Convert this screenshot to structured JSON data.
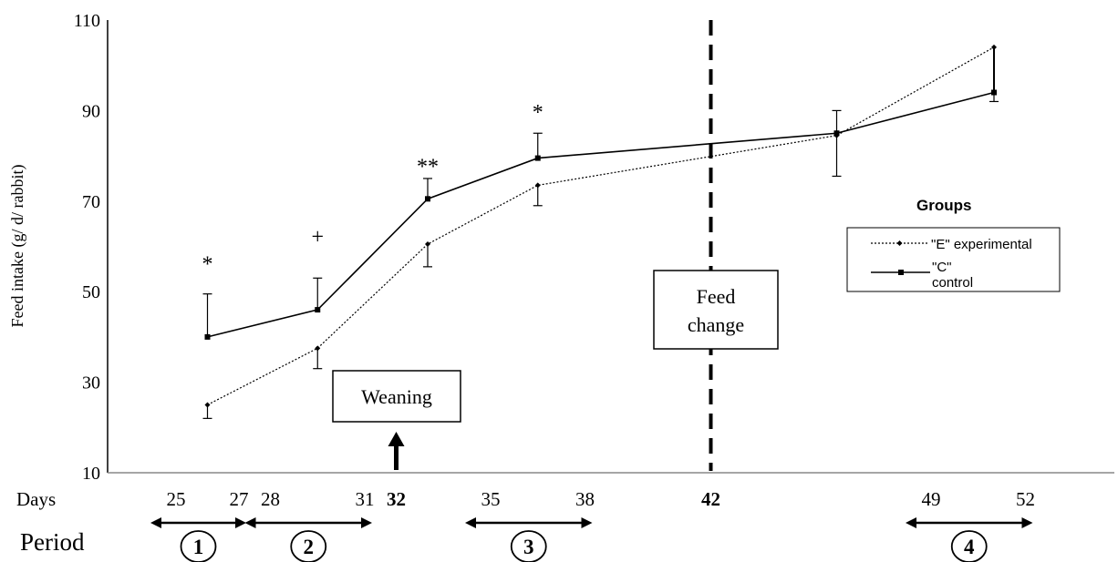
{
  "chart_data": {
    "type": "line",
    "ylabel": "Feed intake (g/ d/ rabbit)",
    "ylim": [
      10,
      110
    ],
    "yticks": [
      "10",
      "30",
      "50",
      "70",
      "90",
      "110"
    ],
    "x_axis_label": "Days",
    "x_day_labels": [
      {
        "day": 25,
        "label": "25",
        "bold": false
      },
      {
        "day": 27,
        "label": "27",
        "bold": false
      },
      {
        "day": 28,
        "label": "28",
        "bold": false
      },
      {
        "day": 31,
        "label": "31",
        "bold": false
      },
      {
        "day": 32,
        "label": "32",
        "bold": true
      },
      {
        "day": 35,
        "label": "35",
        "bold": false
      },
      {
        "day": 38,
        "label": "38",
        "bold": false
      },
      {
        "day": 42,
        "label": "42",
        "bold": true
      },
      {
        "day": 49,
        "label": "49",
        "bold": false
      },
      {
        "day": 52,
        "label": "52",
        "bold": false
      }
    ],
    "legend_title": "Groups",
    "series": [
      {
        "name": "\"E\" experimental",
        "style": "dotted",
        "marker": "diamond",
        "points": [
          {
            "day": 26,
            "value": 25,
            "err_low": 22
          },
          {
            "day": 29.5,
            "value": 37.5,
            "err_low": 33
          },
          {
            "day": 33,
            "value": 60.5,
            "err_low": 55.5
          },
          {
            "day": 36.5,
            "value": 73.5,
            "err_low": 69
          },
          {
            "day": 46,
            "value": 84.5,
            "err_low": 75.5
          },
          {
            "day": 51,
            "value": 104
          }
        ]
      },
      {
        "name": "\"C\" control",
        "name_line1": "\"C\"",
        "name_line2": "control",
        "style": "solid",
        "marker": "square",
        "points": [
          {
            "day": 26,
            "value": 40,
            "err_high": 49.5
          },
          {
            "day": 29.5,
            "value": 46,
            "err_high": 53
          },
          {
            "day": 33,
            "value": 70.5,
            "err_high": 75
          },
          {
            "day": 36.5,
            "value": 79.5,
            "err_high": 85
          },
          {
            "day": 46,
            "value": 85,
            "err_high": 90
          },
          {
            "day": 51,
            "value": 94,
            "err_low": 92
          }
        ]
      }
    ],
    "significance": [
      {
        "day": 26,
        "value": 57,
        "label": "*"
      },
      {
        "day": 29.5,
        "value": 63,
        "label": "+"
      },
      {
        "day": 33,
        "value": 78.5,
        "label": "**"
      },
      {
        "day": 36.5,
        "value": 90.5,
        "label": "*"
      }
    ],
    "annotations": {
      "weaning": {
        "label": "Weaning",
        "day": 32
      },
      "feed_change": {
        "label_line1": "Feed",
        "label_line2": "change",
        "day": 42
      }
    },
    "periods_label": "Period",
    "periods": [
      {
        "label": "1",
        "start": 25,
        "end": 27
      },
      {
        "label": "2",
        "start": 28,
        "end": 31
      },
      {
        "label": "3",
        "start": 35,
        "end": 38
      },
      {
        "label": "4",
        "start": 49,
        "end": 52
      }
    ]
  }
}
